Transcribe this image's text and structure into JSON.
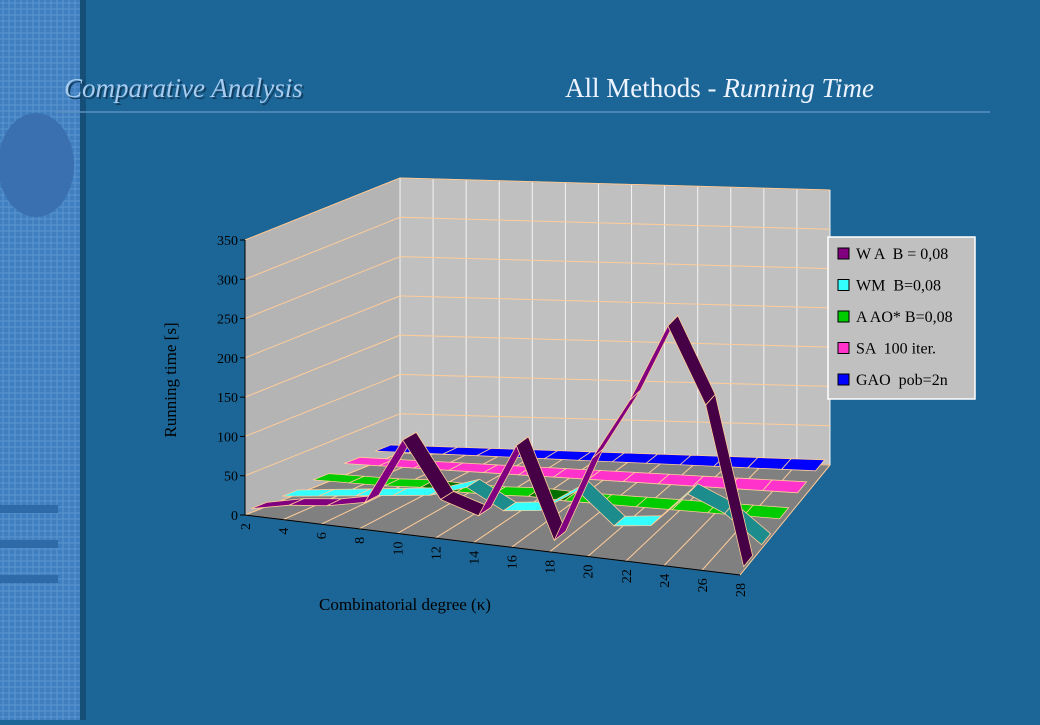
{
  "slide_title": "Comparative Analysis",
  "chart_data": {
    "type": "ribbon3d",
    "title": "All Methods -",
    "title_emphasis": "Running Time",
    "x_label": "Combinatorial degree (κ)",
    "y_label": "Running time [s]",
    "categories": [
      2,
      4,
      6,
      8,
      10,
      12,
      14,
      16,
      18,
      20,
      22,
      24,
      26,
      28
    ],
    "ylim": [
      0,
      350
    ],
    "yticks": [
      0,
      50,
      100,
      150,
      200,
      250,
      300,
      350
    ],
    "grid": true,
    "series": [
      {
        "name": "W A  B = 0,08",
        "color": "#800080",
        "values": [
          5,
          15,
          20,
          30,
          115,
          45,
          30,
          125,
          10,
          120,
          200,
          300,
          205,
          5
        ]
      },
      {
        "name": "WM  B=0,08",
        "color": "#33ffff",
        "values": [
          5,
          10,
          15,
          20,
          25,
          40,
          15,
          20,
          50,
          10,
          15,
          60,
          40,
          5
        ]
      },
      {
        "name": "A AO* B=0,08",
        "color": "#00cc00",
        "values": [
          10,
          10,
          10,
          12,
          10,
          10,
          12,
          10,
          10,
          10,
          10,
          10,
          10,
          10
        ]
      },
      {
        "name": "SA  100 iter.",
        "color": "#ff33cc",
        "values": [
          15,
          15,
          15,
          15,
          15,
          15,
          15,
          15,
          15,
          15,
          15,
          15,
          15,
          15
        ]
      },
      {
        "name": "GAO  pob=2n",
        "color": "#0000ff",
        "values": [
          15,
          15,
          15,
          15,
          15,
          15,
          15,
          15,
          15,
          15,
          15,
          15,
          15,
          15
        ]
      }
    ]
  }
}
